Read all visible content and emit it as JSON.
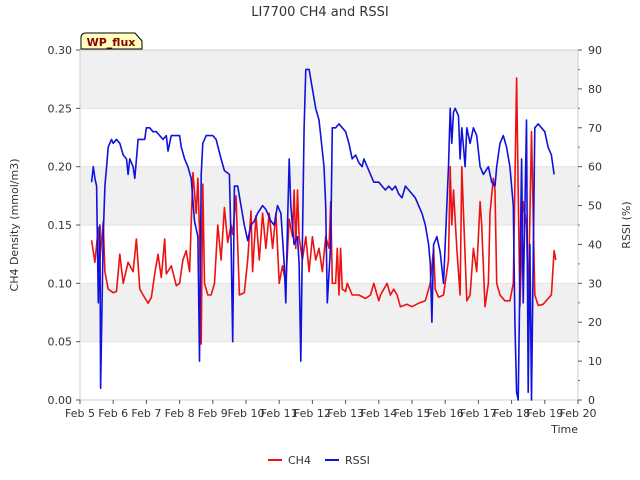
{
  "chart_data": {
    "type": "line",
    "title": "LI7700 CH4 and RSSI",
    "xlabel": "Time",
    "ylabel_left": "CH4 Density (mmol/m3)",
    "ylabel_right": "RSSI (%)",
    "site_badge": "WP_flux",
    "x_ticks": [
      "Feb 5",
      "Feb 6",
      "Feb 7",
      "Feb 8",
      "Feb 9",
      "Feb 10",
      "Feb 11",
      "Feb 12",
      "Feb 13",
      "Feb 14",
      "Feb 15",
      "Feb 16",
      "Feb 17",
      "Feb 18",
      "Feb 19",
      "Feb 20"
    ],
    "y_left_ticks": [
      "0.00",
      "0.05",
      "0.10",
      "0.15",
      "0.20",
      "0.25",
      "0.30"
    ],
    "y_right_ticks": [
      "0",
      "10",
      "20",
      "30",
      "40",
      "50",
      "60",
      "70",
      "80",
      "90"
    ],
    "xlim_days": [
      5,
      20
    ],
    "ylim_left": [
      0,
      0.3
    ],
    "ylim_right": [
      0,
      90
    ],
    "grid": "horizontal bands",
    "legend_position": "bottom-center",
    "series": [
      {
        "name": "CH4",
        "color": "#ee1111",
        "axis": "left",
        "points": [
          [
            5.35,
            0.137
          ],
          [
            5.45,
            0.118
          ],
          [
            5.55,
            0.148
          ],
          [
            5.6,
            0.12
          ],
          [
            5.7,
            0.153
          ],
          [
            5.75,
            0.11
          ],
          [
            5.85,
            0.095
          ],
          [
            6.0,
            0.092
          ],
          [
            6.1,
            0.093
          ],
          [
            6.2,
            0.125
          ],
          [
            6.3,
            0.1
          ],
          [
            6.45,
            0.118
          ],
          [
            6.6,
            0.11
          ],
          [
            6.7,
            0.138
          ],
          [
            6.8,
            0.095
          ],
          [
            6.9,
            0.09
          ],
          [
            7.05,
            0.083
          ],
          [
            7.15,
            0.088
          ],
          [
            7.25,
            0.108
          ],
          [
            7.35,
            0.125
          ],
          [
            7.45,
            0.105
          ],
          [
            7.55,
            0.138
          ],
          [
            7.6,
            0.108
          ],
          [
            7.75,
            0.115
          ],
          [
            7.9,
            0.098
          ],
          [
            8.0,
            0.1
          ],
          [
            8.1,
            0.12
          ],
          [
            8.2,
            0.128
          ],
          [
            8.3,
            0.11
          ],
          [
            8.4,
            0.195
          ],
          [
            8.5,
            0.16
          ],
          [
            8.55,
            0.19
          ],
          [
            8.6,
            0.145
          ],
          [
            8.65,
            0.048
          ],
          [
            8.7,
            0.185
          ],
          [
            8.75,
            0.1
          ],
          [
            8.85,
            0.09
          ],
          [
            8.95,
            0.09
          ],
          [
            9.05,
            0.1
          ],
          [
            9.15,
            0.15
          ],
          [
            9.25,
            0.12
          ],
          [
            9.35,
            0.165
          ],
          [
            9.45,
            0.135
          ],
          [
            9.55,
            0.15
          ],
          [
            9.6,
            0.142
          ],
          [
            9.7,
            0.175
          ],
          [
            9.8,
            0.09
          ],
          [
            9.95,
            0.092
          ],
          [
            10.05,
            0.12
          ],
          [
            10.15,
            0.162
          ],
          [
            10.2,
            0.11
          ],
          [
            10.3,
            0.158
          ],
          [
            10.4,
            0.12
          ],
          [
            10.5,
            0.16
          ],
          [
            10.6,
            0.13
          ],
          [
            10.7,
            0.16
          ],
          [
            10.8,
            0.13
          ],
          [
            10.9,
            0.16
          ],
          [
            11.0,
            0.1
          ],
          [
            11.1,
            0.115
          ],
          [
            11.2,
            0.1
          ],
          [
            11.3,
            0.155
          ],
          [
            11.4,
            0.14
          ],
          [
            11.45,
            0.18
          ],
          [
            11.5,
            0.13
          ],
          [
            11.55,
            0.18
          ],
          [
            11.6,
            0.14
          ],
          [
            11.7,
            0.12
          ],
          [
            11.8,
            0.14
          ],
          [
            11.9,
            0.11
          ],
          [
            12.0,
            0.14
          ],
          [
            12.1,
            0.12
          ],
          [
            12.2,
            0.13
          ],
          [
            12.3,
            0.11
          ],
          [
            12.4,
            0.14
          ],
          [
            12.5,
            0.13
          ],
          [
            12.55,
            0.17
          ],
          [
            12.6,
            0.1
          ],
          [
            12.7,
            0.1
          ],
          [
            12.75,
            0.13
          ],
          [
            12.8,
            0.09
          ],
          [
            12.85,
            0.13
          ],
          [
            12.9,
            0.095
          ],
          [
            13.0,
            0.093
          ],
          [
            13.05,
            0.1
          ],
          [
            13.2,
            0.09
          ],
          [
            13.4,
            0.09
          ],
          [
            13.6,
            0.087
          ],
          [
            13.75,
            0.09
          ],
          [
            13.85,
            0.1
          ],
          [
            13.95,
            0.09
          ],
          [
            14.0,
            0.085
          ],
          [
            14.05,
            0.09
          ],
          [
            14.25,
            0.1
          ],
          [
            14.35,
            0.09
          ],
          [
            14.45,
            0.095
          ],
          [
            14.55,
            0.09
          ],
          [
            14.65,
            0.08
          ],
          [
            14.85,
            0.082
          ],
          [
            15.0,
            0.08
          ],
          [
            15.2,
            0.083
          ],
          [
            15.4,
            0.085
          ],
          [
            15.55,
            0.1
          ],
          [
            15.65,
            0.13
          ],
          [
            15.7,
            0.095
          ],
          [
            15.8,
            0.088
          ],
          [
            15.95,
            0.09
          ],
          [
            16.1,
            0.12
          ],
          [
            16.15,
            0.2
          ],
          [
            16.2,
            0.15
          ],
          [
            16.25,
            0.18
          ],
          [
            16.35,
            0.13
          ],
          [
            16.45,
            0.09
          ],
          [
            16.5,
            0.2
          ],
          [
            16.55,
            0.16
          ],
          [
            16.65,
            0.085
          ],
          [
            16.75,
            0.09
          ],
          [
            16.85,
            0.13
          ],
          [
            16.95,
            0.11
          ],
          [
            17.05,
            0.17
          ],
          [
            17.1,
            0.15
          ],
          [
            17.2,
            0.08
          ],
          [
            17.3,
            0.1
          ],
          [
            17.35,
            0.16
          ],
          [
            17.45,
            0.19
          ],
          [
            17.5,
            0.18
          ],
          [
            17.55,
            0.1
          ],
          [
            17.65,
            0.09
          ],
          [
            17.8,
            0.085
          ],
          [
            17.95,
            0.085
          ],
          [
            18.05,
            0.1
          ],
          [
            18.15,
            0.276
          ],
          [
            18.2,
            0.18
          ],
          [
            18.25,
            0.08
          ],
          [
            18.35,
            0.17
          ],
          [
            18.45,
            0.15
          ],
          [
            18.5,
            0.08
          ],
          [
            18.6,
            0.23
          ],
          [
            18.7,
            0.09
          ],
          [
            18.8,
            0.081
          ],
          [
            18.95,
            0.082
          ],
          [
            19.1,
            0.087
          ],
          [
            19.2,
            0.09
          ],
          [
            19.28,
            0.128
          ],
          [
            19.33,
            0.12
          ]
        ]
      },
      {
        "name": "RSSI",
        "color": "#1111dd",
        "axis": "right",
        "points": [
          [
            5.35,
            56
          ],
          [
            5.4,
            60
          ],
          [
            5.45,
            57
          ],
          [
            5.5,
            55
          ],
          [
            5.55,
            25
          ],
          [
            5.6,
            45
          ],
          [
            5.62,
            3
          ],
          [
            5.7,
            42
          ],
          [
            5.75,
            55
          ],
          [
            5.8,
            60
          ],
          [
            5.85,
            65
          ],
          [
            5.95,
            67
          ],
          [
            6.0,
            66
          ],
          [
            6.1,
            67
          ],
          [
            6.2,
            66
          ],
          [
            6.3,
            63
          ],
          [
            6.4,
            62
          ],
          [
            6.45,
            58
          ],
          [
            6.5,
            62
          ],
          [
            6.6,
            60
          ],
          [
            6.65,
            57
          ],
          [
            6.75,
            67
          ],
          [
            6.85,
            67
          ],
          [
            6.95,
            67
          ],
          [
            7.0,
            70
          ],
          [
            7.1,
            70
          ],
          [
            7.2,
            69
          ],
          [
            7.3,
            69
          ],
          [
            7.4,
            68
          ],
          [
            7.5,
            67
          ],
          [
            7.6,
            68
          ],
          [
            7.65,
            64
          ],
          [
            7.75,
            68
          ],
          [
            7.85,
            68
          ],
          [
            8.0,
            68
          ],
          [
            8.05,
            65
          ],
          [
            8.15,
            62
          ],
          [
            8.25,
            60
          ],
          [
            8.35,
            57
          ],
          [
            8.45,
            46
          ],
          [
            8.55,
            42
          ],
          [
            8.6,
            10
          ],
          [
            8.65,
            58
          ],
          [
            8.7,
            66
          ],
          [
            8.8,
            68
          ],
          [
            8.9,
            68
          ],
          [
            9.0,
            68
          ],
          [
            9.1,
            67
          ],
          [
            9.25,
            62
          ],
          [
            9.35,
            59
          ],
          [
            9.5,
            58
          ],
          [
            9.55,
            40
          ],
          [
            9.6,
            15
          ],
          [
            9.65,
            55
          ],
          [
            9.75,
            55
          ],
          [
            9.85,
            50
          ],
          [
            9.95,
            45
          ],
          [
            10.05,
            41
          ],
          [
            10.15,
            45
          ],
          [
            10.25,
            46
          ],
          [
            10.35,
            48
          ],
          [
            10.5,
            50
          ],
          [
            10.6,
            49
          ],
          [
            10.75,
            46
          ],
          [
            10.85,
            45
          ],
          [
            10.95,
            50
          ],
          [
            11.05,
            48
          ],
          [
            11.15,
            35
          ],
          [
            11.2,
            25
          ],
          [
            11.25,
            45
          ],
          [
            11.3,
            62
          ],
          [
            11.35,
            50
          ],
          [
            11.45,
            40
          ],
          [
            11.55,
            42
          ],
          [
            11.6,
            35
          ],
          [
            11.65,
            10
          ],
          [
            11.7,
            40
          ],
          [
            11.75,
            70
          ],
          [
            11.8,
            85
          ],
          [
            11.9,
            85
          ],
          [
            12.0,
            80
          ],
          [
            12.1,
            75
          ],
          [
            12.2,
            72
          ],
          [
            12.25,
            68
          ],
          [
            12.35,
            60
          ],
          [
            12.4,
            50
          ],
          [
            12.45,
            25
          ],
          [
            12.55,
            40
          ],
          [
            12.6,
            70
          ],
          [
            12.7,
            70
          ],
          [
            12.8,
            71
          ],
          [
            12.9,
            70
          ],
          [
            13.0,
            69
          ],
          [
            13.1,
            66
          ],
          [
            13.2,
            62
          ],
          [
            13.3,
            63
          ],
          [
            13.4,
            61
          ],
          [
            13.5,
            60
          ],
          [
            13.55,
            62
          ],
          [
            13.65,
            60
          ],
          [
            13.75,
            58
          ],
          [
            13.85,
            56
          ],
          [
            14.0,
            56
          ],
          [
            14.1,
            55
          ],
          [
            14.2,
            54
          ],
          [
            14.3,
            55
          ],
          [
            14.4,
            54
          ],
          [
            14.5,
            55
          ],
          [
            14.6,
            53
          ],
          [
            14.7,
            52
          ],
          [
            14.8,
            55
          ],
          [
            14.9,
            54
          ],
          [
            15.0,
            53
          ],
          [
            15.1,
            52
          ],
          [
            15.2,
            50
          ],
          [
            15.3,
            48
          ],
          [
            15.4,
            45
          ],
          [
            15.5,
            40
          ],
          [
            15.55,
            35
          ],
          [
            15.6,
            20
          ],
          [
            15.65,
            40
          ],
          [
            15.75,
            42
          ],
          [
            15.85,
            38
          ],
          [
            15.95,
            30
          ],
          [
            16.0,
            40
          ],
          [
            16.1,
            60
          ],
          [
            16.15,
            75
          ],
          [
            16.2,
            66
          ],
          [
            16.25,
            74
          ],
          [
            16.3,
            75
          ],
          [
            16.4,
            73
          ],
          [
            16.45,
            62
          ],
          [
            16.5,
            70
          ],
          [
            16.55,
            65
          ],
          [
            16.6,
            60
          ],
          [
            16.65,
            70
          ],
          [
            16.75,
            66
          ],
          [
            16.85,
            70
          ],
          [
            16.95,
            68
          ],
          [
            17.05,
            60
          ],
          [
            17.15,
            58
          ],
          [
            17.3,
            60
          ],
          [
            17.4,
            56
          ],
          [
            17.5,
            55
          ],
          [
            17.55,
            60
          ],
          [
            17.65,
            66
          ],
          [
            17.75,
            68
          ],
          [
            17.85,
            65
          ],
          [
            17.95,
            60
          ],
          [
            18.05,
            50
          ],
          [
            18.1,
            20
          ],
          [
            18.15,
            2
          ],
          [
            18.2,
            0
          ],
          [
            18.3,
            62
          ],
          [
            18.35,
            25
          ],
          [
            18.45,
            72
          ],
          [
            18.5,
            2
          ],
          [
            18.55,
            40
          ],
          [
            18.6,
            0
          ],
          [
            18.7,
            70
          ],
          [
            18.8,
            71
          ],
          [
            18.9,
            70
          ],
          [
            19.0,
            69
          ],
          [
            19.1,
            65
          ],
          [
            19.2,
            63
          ],
          [
            19.28,
            58
          ]
        ]
      }
    ]
  }
}
